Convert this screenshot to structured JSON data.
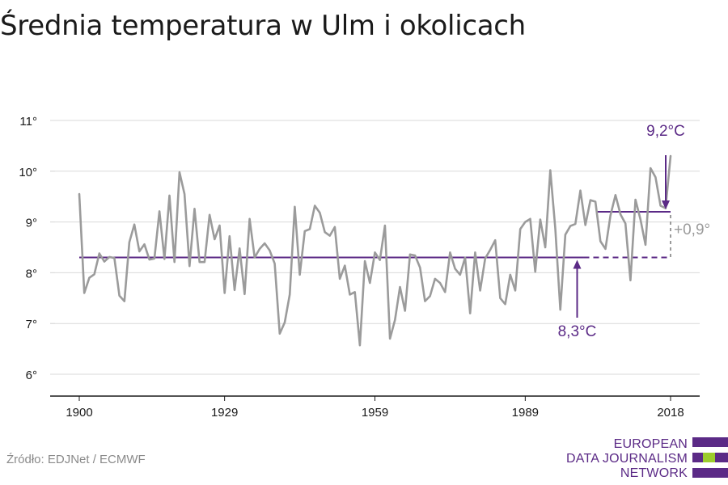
{
  "title": "Średnia temperatura w Ulm i okolicach",
  "source": "Źródło: EDJNet / ECMWF",
  "logo": {
    "lines": [
      "EUROPEAN",
      "DATA JOURNALISM",
      "NETWORK"
    ],
    "colors": {
      "purple": "#5b2a86",
      "green": "#9ccc2c"
    }
  },
  "colors": {
    "line": "#9b9b9b",
    "accent": "#5b2a86",
    "grid": "#d9d9d9",
    "axis": "#1a1a1a",
    "delta": "#9b9b9b"
  },
  "chart_data": {
    "type": "line",
    "title": "Średnia temperatura w Ulm i okolicach",
    "xlabel": "",
    "ylabel": "",
    "xlim": [
      1900,
      2018
    ],
    "ylim": [
      6,
      11
    ],
    "x_ticks": [
      1900,
      1929,
      1959,
      1989,
      2018
    ],
    "y_ticks": [
      6,
      7,
      8,
      9,
      10,
      11
    ],
    "y_tick_labels": [
      "6°",
      "7°",
      "8°",
      "9°",
      "10°",
      "11°"
    ],
    "grid": "horizontal",
    "series": [
      {
        "x": [
          1900,
          1901,
          1902,
          1903,
          1904,
          1905,
          1906,
          1907,
          1908,
          1909,
          1910,
          1911,
          1912,
          1913,
          1914,
          1915,
          1916,
          1917,
          1918,
          1919,
          1920,
          1921,
          1922,
          1923,
          1924,
          1925,
          1926,
          1927,
          1928,
          1929,
          1930,
          1931,
          1932,
          1933,
          1934,
          1935,
          1936,
          1937,
          1938,
          1939,
          1940,
          1941,
          1942,
          1943,
          1944,
          1945,
          1946,
          1947,
          1948,
          1949,
          1950,
          1951,
          1952,
          1953,
          1954,
          1955,
          1956,
          1957,
          1958,
          1959,
          1960,
          1961,
          1962,
          1963,
          1964,
          1965,
          1966,
          1967,
          1968,
          1969,
          1970,
          1971,
          1972,
          1973,
          1974,
          1975,
          1976,
          1977,
          1978,
          1979,
          1980,
          1981,
          1982,
          1983,
          1984,
          1985,
          1986,
          1987,
          1988,
          1989,
          1990,
          1991,
          1992,
          1993,
          1994,
          1995,
          1996,
          1997,
          1998,
          1999,
          2000,
          2001,
          2002,
          2003,
          2004,
          2005,
          2006,
          2007,
          2008,
          2009,
          2010,
          2011,
          2012,
          2013,
          2014,
          2015,
          2016,
          2017,
          2018
        ],
        "values": [
          9.55,
          7.6,
          7.9,
          7.97,
          8.38,
          8.22,
          8.31,
          8.29,
          7.55,
          7.44,
          8.6,
          8.95,
          8.42,
          8.56,
          8.26,
          8.28,
          9.21,
          8.27,
          9.52,
          8.21,
          9.98,
          9.55,
          8.13,
          9.26,
          8.21,
          8.21,
          9.14,
          8.66,
          8.93,
          7.6,
          8.72,
          7.66,
          8.48,
          7.58,
          9.06,
          8.3,
          8.47,
          8.58,
          8.44,
          8.18,
          6.8,
          7.02,
          7.57,
          9.3,
          7.96,
          8.82,
          8.86,
          9.32,
          9.18,
          8.8,
          8.73,
          8.9,
          7.88,
          8.14,
          7.57,
          7.62,
          6.57,
          8.23,
          7.8,
          8.4,
          8.25,
          8.93,
          6.7,
          7.07,
          7.72,
          7.25,
          8.36,
          8.34,
          8.1,
          7.44,
          7.54,
          7.88,
          7.8,
          7.62,
          8.4,
          8.08,
          7.96,
          8.3,
          7.2,
          8.4,
          7.65,
          8.28,
          8.45,
          8.64,
          7.5,
          7.38,
          7.96,
          7.65,
          8.86,
          9.0,
          9.06,
          8.02,
          9.05,
          8.5,
          10.02,
          8.87,
          7.27,
          8.75,
          8.92,
          8.96,
          9.62,
          8.94,
          9.43,
          9.4,
          8.62,
          8.47,
          9.13,
          9.53,
          9.15,
          8.97,
          7.85,
          9.44,
          9.05,
          8.55,
          10.06,
          9.88,
          9.32,
          9.27,
          10.3
        ]
      }
    ],
    "baseline": {
      "value": 8.3,
      "label": "8,3°C"
    },
    "recent": {
      "value": 9.2,
      "label": "9,2°C",
      "from": 2000
    },
    "delta_label": "+0,9°"
  }
}
